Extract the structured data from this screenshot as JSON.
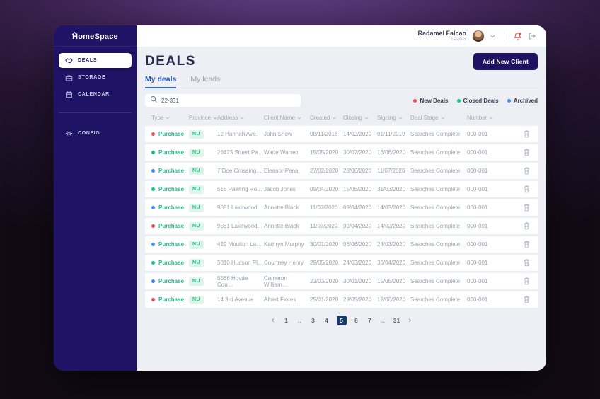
{
  "app": {
    "logo_text": "HomeSpace"
  },
  "sidebar": {
    "items": [
      {
        "label": "DEALS",
        "icon": "handshake-icon",
        "active": true
      },
      {
        "label": "STORAGE",
        "icon": "briefcase-icon",
        "active": false
      },
      {
        "label": "CALENDAR",
        "icon": "calendar-icon",
        "active": false
      }
    ],
    "secondary_items": [
      {
        "label": "CONFIG",
        "icon": "gear-icon",
        "active": false
      }
    ]
  },
  "header": {
    "user_name": "Radamel Falcao",
    "user_role": "Lawyer"
  },
  "page": {
    "title": "DEALS",
    "add_client_button": "Add New Client",
    "tabs": [
      {
        "label": "My deals",
        "active": true
      },
      {
        "label": "My leads",
        "active": false
      }
    ],
    "search_value": "22-331",
    "legend": [
      {
        "key": "new",
        "label": "New Deals",
        "color": "#e8505b"
      },
      {
        "key": "closed",
        "label": "Closed Deals",
        "color": "#10c48e"
      },
      {
        "key": "archived",
        "label": "Archived",
        "color": "#3f8cf3"
      }
    ]
  },
  "table": {
    "columns": [
      {
        "label": "Type",
        "key": "type"
      },
      {
        "label": "Province",
        "key": "province"
      },
      {
        "label": "Address",
        "key": "address"
      },
      {
        "label": "Client Name",
        "key": "client"
      },
      {
        "label": "Created",
        "key": "created"
      },
      {
        "label": "Closing",
        "key": "closing"
      },
      {
        "label": "Signing",
        "key": "signing"
      },
      {
        "label": "Deal Stage",
        "key": "stage"
      },
      {
        "label": "Number",
        "key": "number"
      }
    ],
    "rows": [
      {
        "status": "new",
        "type": "Purchase",
        "province": "NU",
        "address": "12 Hannah Ave.",
        "client": "John Snow",
        "created": "08/11/2018",
        "closing": "14/02/2020",
        "signing": "01/11/2019",
        "stage": "Searches Complete",
        "number": "000-001"
      },
      {
        "status": "closed",
        "type": "Purchase",
        "province": "NU",
        "address": "26423 Stuart Pa…",
        "client": "Wade Warren",
        "created": "15/05/2020",
        "closing": "30/07/2020",
        "signing": "16/06/2020",
        "stage": "Searches Complete",
        "number": "000-001"
      },
      {
        "status": "archived",
        "type": "Purchase",
        "province": "NU",
        "address": "7 Doe Crossing…",
        "client": "Eleanor Pena",
        "created": "27/02/2020",
        "closing": "28/06/2020",
        "signing": "11/07/2020",
        "stage": "Searches Complete",
        "number": "000-001"
      },
      {
        "status": "closed",
        "type": "Purchase",
        "province": "NU",
        "address": "516 Pawling Ro…",
        "client": "Jacob Jones",
        "created": "09/04/2020",
        "closing": "15/05/2020",
        "signing": "31/03/2020",
        "stage": "Searches Complete",
        "number": "000-001"
      },
      {
        "status": "archived",
        "type": "Purchase",
        "province": "NU",
        "address": "9081 Lakewood…",
        "client": "Annette Black",
        "created": "11/07/2020",
        "closing": "09/04/2020",
        "signing": "14/02/2020",
        "stage": "Searches Complete",
        "number": "000-001"
      },
      {
        "status": "new",
        "type": "Purchase",
        "province": "NU",
        "address": "9081 Lakewood…",
        "client": "Annette Black",
        "created": "11/07/2020",
        "closing": "09/04/2020",
        "signing": "14/02/2020",
        "stage": "Searches Complete",
        "number": "000-001"
      },
      {
        "status": "archived",
        "type": "Purchase",
        "province": "NU",
        "address": "429 Moulton La…",
        "client": "Kathryn Murphy",
        "created": "30/01/2020",
        "closing": "06/06/2020",
        "signing": "24/03/2020",
        "stage": "Searches Complete",
        "number": "000-001"
      },
      {
        "status": "closed",
        "type": "Purchase",
        "province": "NU",
        "address": "5010 Hudson Pl…",
        "client": "Courtney Henry",
        "created": "29/05/2020",
        "closing": "24/03/2020",
        "signing": "30/04/2020",
        "stage": "Searches Complete",
        "number": "000-001"
      },
      {
        "status": "archived",
        "type": "Purchase",
        "province": "NU",
        "address": "5566 Hovde Cou…",
        "client": "Cameron William…",
        "created": "23/03/2020",
        "closing": "30/01/2020",
        "signing": "15/05/2020",
        "stage": "Searches Complete",
        "number": "000-001"
      },
      {
        "status": "new",
        "type": "Purchase",
        "province": "NU",
        "address": "14 3rd Avenue",
        "client": "Albert Flores",
        "created": "25/01/2020",
        "closing": "29/05/2020",
        "signing": "12/06/2020",
        "stage": "Searches Complete",
        "number": "000-001"
      }
    ]
  },
  "pagination": {
    "prev": "‹",
    "next": "›",
    "pages": [
      "1",
      "..",
      "3",
      "4",
      "5",
      "6",
      "7",
      "..",
      "31"
    ],
    "active": "5"
  }
}
